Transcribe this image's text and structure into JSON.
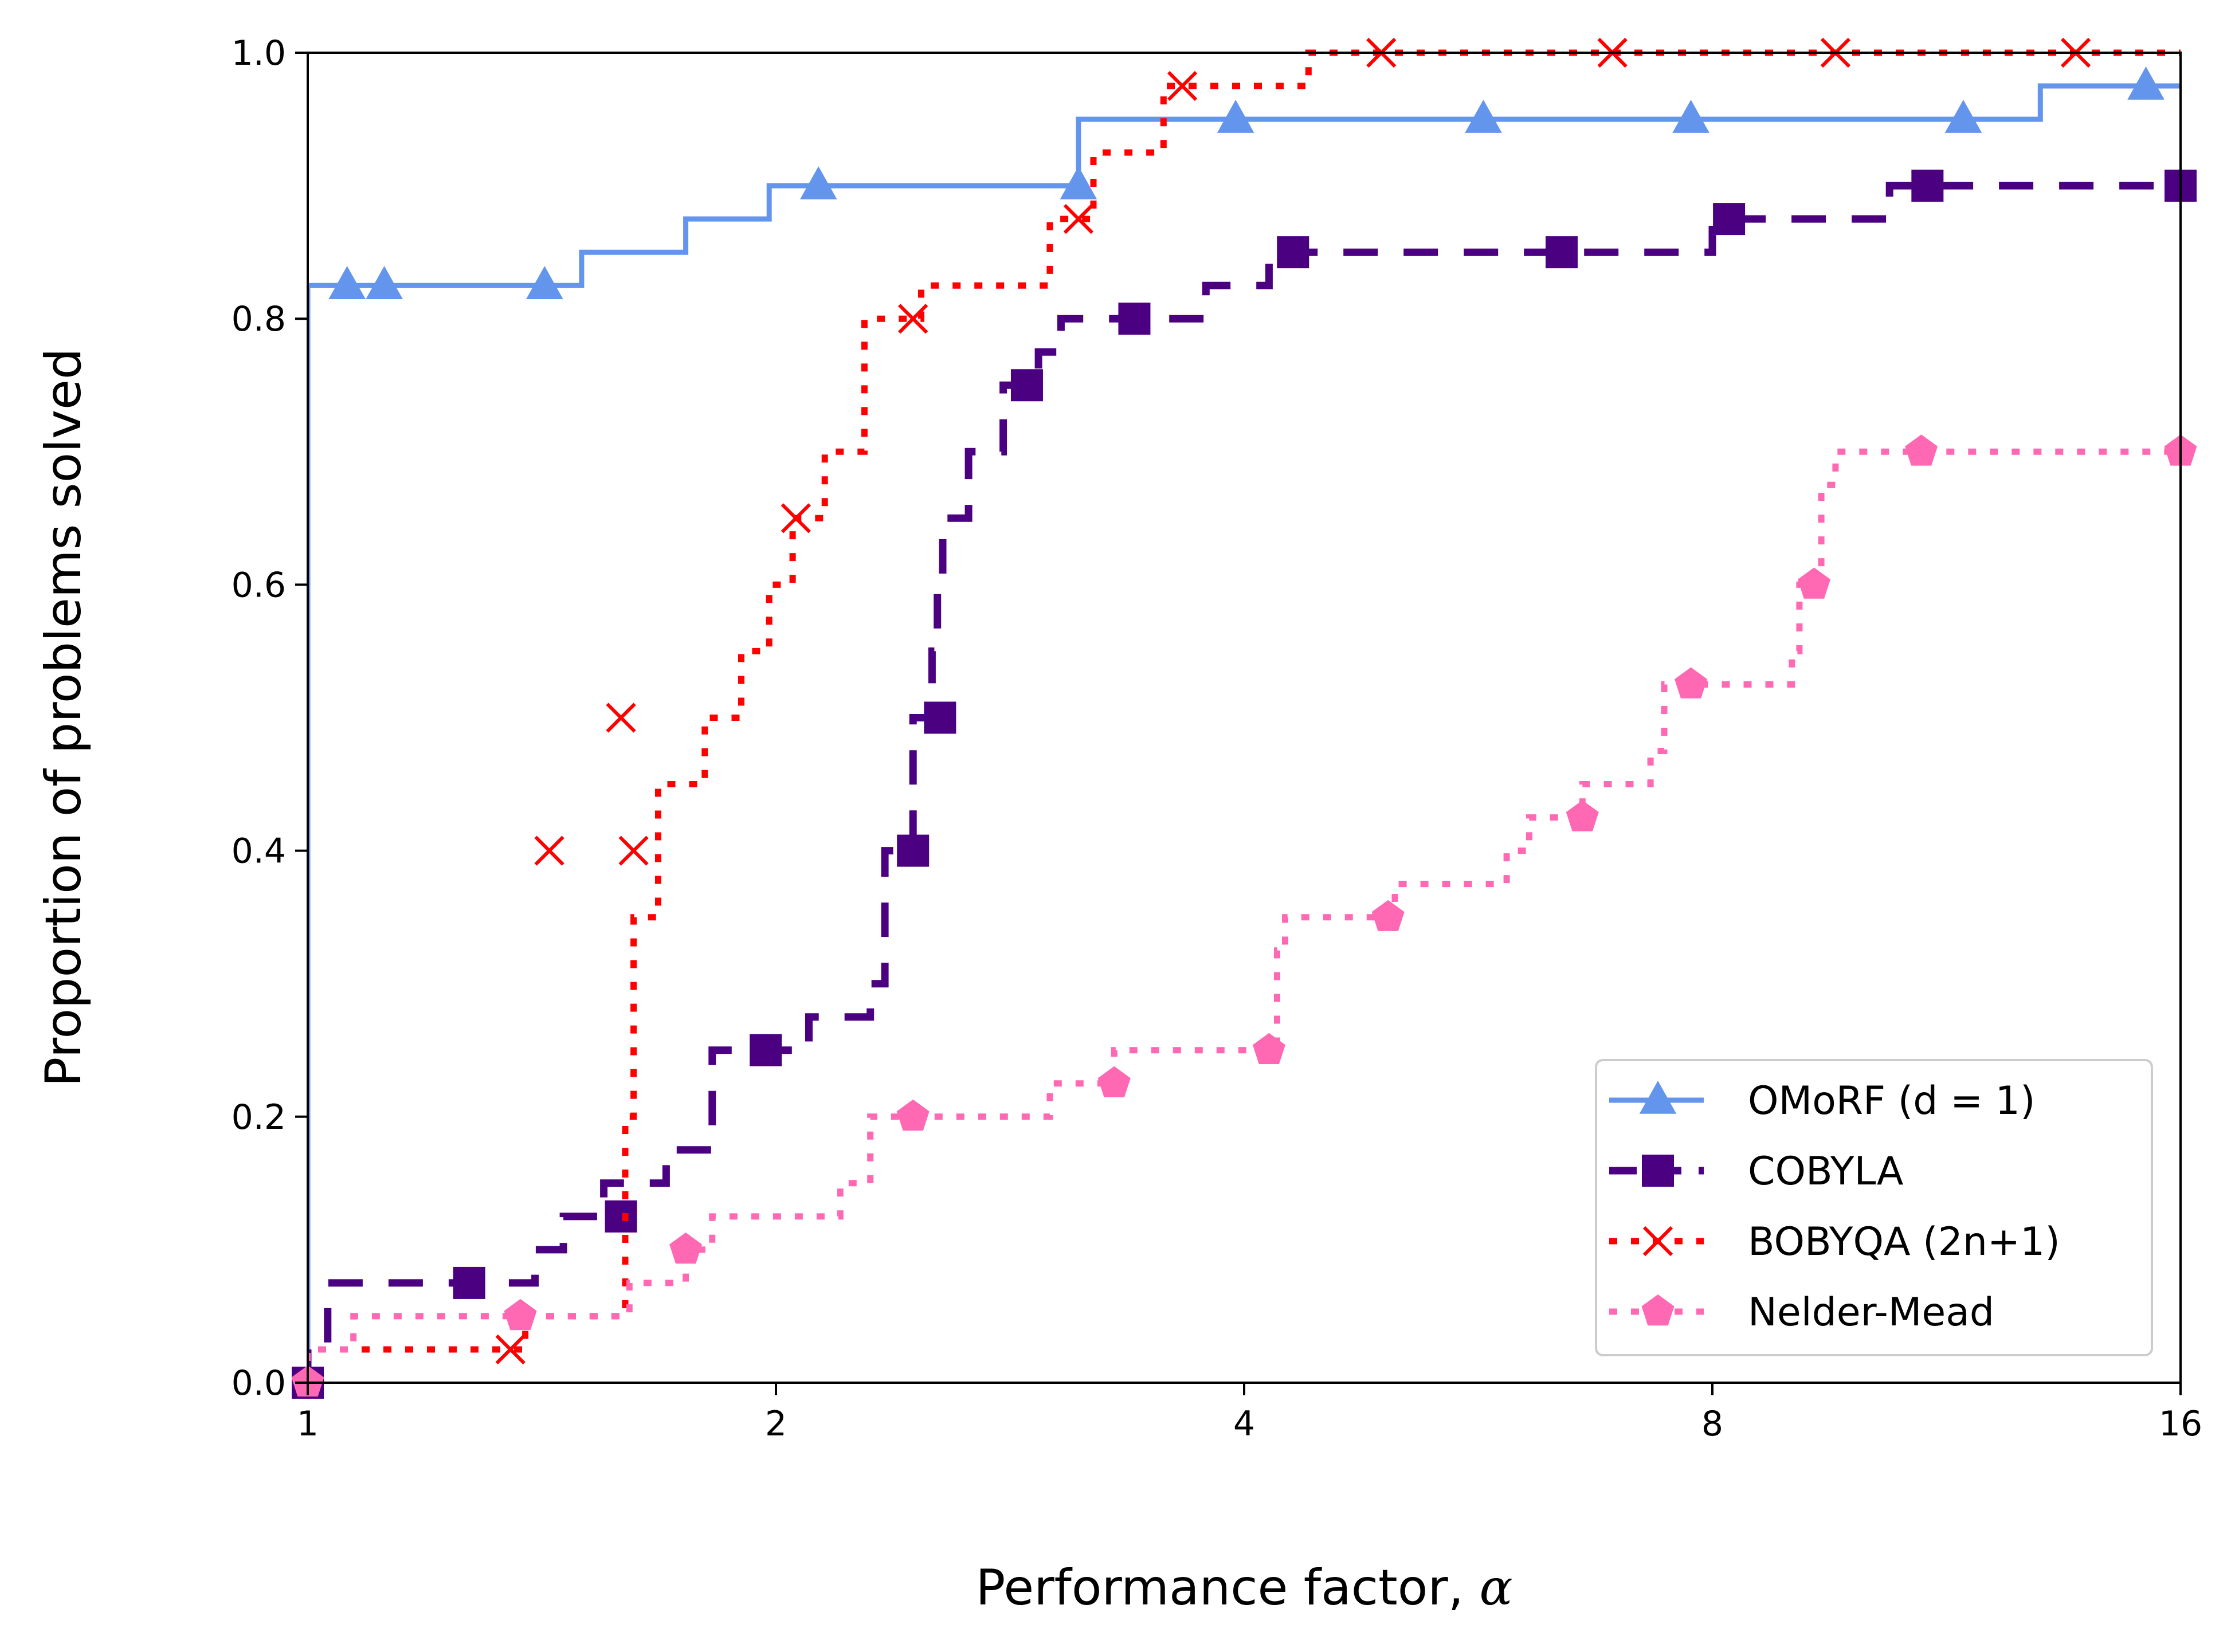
{
  "chart_data": {
    "type": "line",
    "xscale": "log2",
    "xlim": [
      1,
      16
    ],
    "ylim": [
      0,
      1
    ],
    "xticks": [
      1,
      2,
      4,
      8,
      16
    ],
    "xtick_labels": [
      "1",
      "2",
      "4",
      "8",
      "16"
    ],
    "yticks": [
      0,
      0.2,
      0.4,
      0.6,
      0.8,
      1.0
    ],
    "ytick_labels": [
      "0.0",
      "0.2",
      "0.4",
      "0.6",
      "0.8",
      "1.0"
    ],
    "xlabel": "Performance factor, ",
    "xlabel_symbol": "α",
    "ylabel": "Proportion of problems solved",
    "grid": false,
    "legend_position": "lower-right",
    "series": [
      {
        "name": "OMoRF (d = 1)",
        "color": "#6495ED",
        "marker": "triangle",
        "linestyle": "solid",
        "steps": [
          [
            1,
            0
          ],
          [
            1,
            0.825
          ],
          [
            1.5,
            0.825
          ],
          [
            1.5,
            0.85
          ],
          [
            1.75,
            0.85
          ],
          [
            1.75,
            0.875
          ],
          [
            1.98,
            0.875
          ],
          [
            1.98,
            0.9
          ],
          [
            3.13,
            0.9
          ],
          [
            3.13,
            0.95
          ],
          [
            13.0,
            0.95
          ],
          [
            13.0,
            0.975
          ],
          [
            16,
            0.975
          ]
        ],
        "markers": [
          [
            1.06,
            0.825
          ],
          [
            1.12,
            0.825
          ],
          [
            1.42,
            0.825
          ],
          [
            2.13,
            0.9
          ],
          [
            3.13,
            0.9
          ],
          [
            3.95,
            0.95
          ],
          [
            5.7,
            0.95
          ],
          [
            7.75,
            0.95
          ],
          [
            11.6,
            0.95
          ],
          [
            15.2,
            0.975
          ]
        ]
      },
      {
        "name": "COBYLA",
        "color": "#4B0082",
        "marker": "square",
        "linestyle": "dashed",
        "steps": [
          [
            1,
            0
          ],
          [
            1,
            0.025
          ],
          [
            1.03,
            0.025
          ],
          [
            1.03,
            0.075
          ],
          [
            1.4,
            0.075
          ],
          [
            1.4,
            0.1
          ],
          [
            1.46,
            0.1
          ],
          [
            1.46,
            0.125
          ],
          [
            1.55,
            0.125
          ],
          [
            1.55,
            0.15
          ],
          [
            1.7,
            0.15
          ],
          [
            1.7,
            0.175
          ],
          [
            1.82,
            0.175
          ],
          [
            1.82,
            0.25
          ],
          [
            2.1,
            0.25
          ],
          [
            2.1,
            0.275
          ],
          [
            2.3,
            0.275
          ],
          [
            2.3,
            0.3
          ],
          [
            2.35,
            0.3
          ],
          [
            2.35,
            0.4
          ],
          [
            2.45,
            0.4
          ],
          [
            2.45,
            0.5
          ],
          [
            2.52,
            0.5
          ],
          [
            2.52,
            0.55
          ],
          [
            2.54,
            0.55
          ],
          [
            2.54,
            0.6
          ],
          [
            2.56,
            0.6
          ],
          [
            2.56,
            0.65
          ],
          [
            2.66,
            0.65
          ],
          [
            2.66,
            0.7
          ],
          [
            2.8,
            0.7
          ],
          [
            2.8,
            0.75
          ],
          [
            2.95,
            0.75
          ],
          [
            2.95,
            0.775
          ],
          [
            3.05,
            0.775
          ],
          [
            3.05,
            0.8
          ],
          [
            3.78,
            0.8
          ],
          [
            3.78,
            0.825
          ],
          [
            4.15,
            0.825
          ],
          [
            4.15,
            0.85
          ],
          [
            8.0,
            0.85
          ],
          [
            8.0,
            0.875
          ],
          [
            10.4,
            0.875
          ],
          [
            10.4,
            0.9
          ],
          [
            16,
            0.9
          ]
        ],
        "markers": [
          [
            1.0,
            0.0
          ],
          [
            1.27,
            0.075
          ],
          [
            1.59,
            0.125
          ],
          [
            1.97,
            0.25
          ],
          [
            2.45,
            0.4
          ],
          [
            2.55,
            0.5
          ],
          [
            2.9,
            0.75
          ],
          [
            3.4,
            0.8
          ],
          [
            4.3,
            0.85
          ],
          [
            6.4,
            0.85
          ],
          [
            8.2,
            0.875
          ],
          [
            11.0,
            0.9
          ],
          [
            16.0,
            0.9
          ]
        ]
      },
      {
        "name": "BOBYQA (2n+1)",
        "color": "#FF0000",
        "marker": "x",
        "linestyle": "dotted",
        "steps": [
          [
            1,
            0
          ],
          [
            1,
            0.025
          ],
          [
            1.38,
            0.025
          ],
          [
            1.38,
            0.05
          ],
          [
            1.6,
            0.05
          ],
          [
            1.6,
            0.2
          ],
          [
            1.62,
            0.2
          ],
          [
            1.62,
            0.35
          ],
          [
            1.68,
            0.35
          ],
          [
            1.68,
            0.45
          ],
          [
            1.8,
            0.45
          ],
          [
            1.8,
            0.5
          ],
          [
            1.9,
            0.5
          ],
          [
            1.9,
            0.55
          ],
          [
            1.98,
            0.55
          ],
          [
            1.98,
            0.6
          ],
          [
            2.05,
            0.6
          ],
          [
            2.05,
            0.65
          ],
          [
            2.15,
            0.65
          ],
          [
            2.15,
            0.7
          ],
          [
            2.28,
            0.7
          ],
          [
            2.28,
            0.8
          ],
          [
            2.48,
            0.8
          ],
          [
            2.48,
            0.825
          ],
          [
            3.0,
            0.825
          ],
          [
            3.0,
            0.875
          ],
          [
            3.2,
            0.875
          ],
          [
            3.2,
            0.925
          ],
          [
            3.55,
            0.925
          ],
          [
            3.55,
            0.975
          ],
          [
            4.4,
            0.975
          ],
          [
            4.4,
            1.0
          ],
          [
            16,
            1.0
          ]
        ],
        "markers": [
          [
            1.35,
            0.025
          ],
          [
            1.43,
            0.4
          ],
          [
            1.59,
            0.5
          ],
          [
            1.62,
            0.4
          ],
          [
            2.06,
            0.65
          ],
          [
            2.45,
            0.8
          ],
          [
            3.13,
            0.875
          ],
          [
            3.65,
            0.975
          ],
          [
            4.9,
            1.0
          ],
          [
            6.9,
            1.0
          ],
          [
            9.6,
            1.0
          ],
          [
            13.7,
            1.0
          ]
        ]
      },
      {
        "name": "Nelder-Mead",
        "color": "#FF69B4",
        "marker": "pentagon",
        "linestyle": "dotted",
        "steps": [
          [
            1,
            0
          ],
          [
            1,
            0.025
          ],
          [
            1.07,
            0.025
          ],
          [
            1.07,
            0.05
          ],
          [
            1.61,
            0.05
          ],
          [
            1.61,
            0.075
          ],
          [
            1.75,
            0.075
          ],
          [
            1.75,
            0.1
          ],
          [
            1.82,
            0.1
          ],
          [
            1.82,
            0.125
          ],
          [
            2.2,
            0.125
          ],
          [
            2.2,
            0.15
          ],
          [
            2.3,
            0.15
          ],
          [
            2.3,
            0.2
          ],
          [
            3.0,
            0.2
          ],
          [
            3.0,
            0.225
          ],
          [
            3.3,
            0.225
          ],
          [
            3.3,
            0.25
          ],
          [
            4.2,
            0.25
          ],
          [
            4.2,
            0.325
          ],
          [
            4.25,
            0.325
          ],
          [
            4.25,
            0.35
          ],
          [
            5.0,
            0.35
          ],
          [
            5.0,
            0.375
          ],
          [
            5.9,
            0.375
          ],
          [
            5.9,
            0.4
          ],
          [
            6.1,
            0.4
          ],
          [
            6.1,
            0.425
          ],
          [
            6.6,
            0.425
          ],
          [
            6.6,
            0.45
          ],
          [
            7.3,
            0.45
          ],
          [
            7.3,
            0.475
          ],
          [
            7.45,
            0.475
          ],
          [
            7.45,
            0.525
          ],
          [
            9.0,
            0.525
          ],
          [
            9.0,
            0.55
          ],
          [
            9.1,
            0.55
          ],
          [
            9.1,
            0.6
          ],
          [
            9.4,
            0.6
          ],
          [
            9.4,
            0.675
          ],
          [
            9.6,
            0.675
          ],
          [
            9.6,
            0.7
          ],
          [
            16,
            0.7
          ]
        ],
        "markers": [
          [
            1.0,
            0.0
          ],
          [
            1.37,
            0.05
          ],
          [
            1.75,
            0.1
          ],
          [
            2.45,
            0.2
          ],
          [
            3.3,
            0.225
          ],
          [
            4.15,
            0.25
          ],
          [
            4.95,
            0.35
          ],
          [
            6.6,
            0.425
          ],
          [
            7.75,
            0.525
          ],
          [
            9.3,
            0.6
          ],
          [
            10.9,
            0.7
          ],
          [
            16.0,
            0.7
          ]
        ]
      }
    ]
  }
}
